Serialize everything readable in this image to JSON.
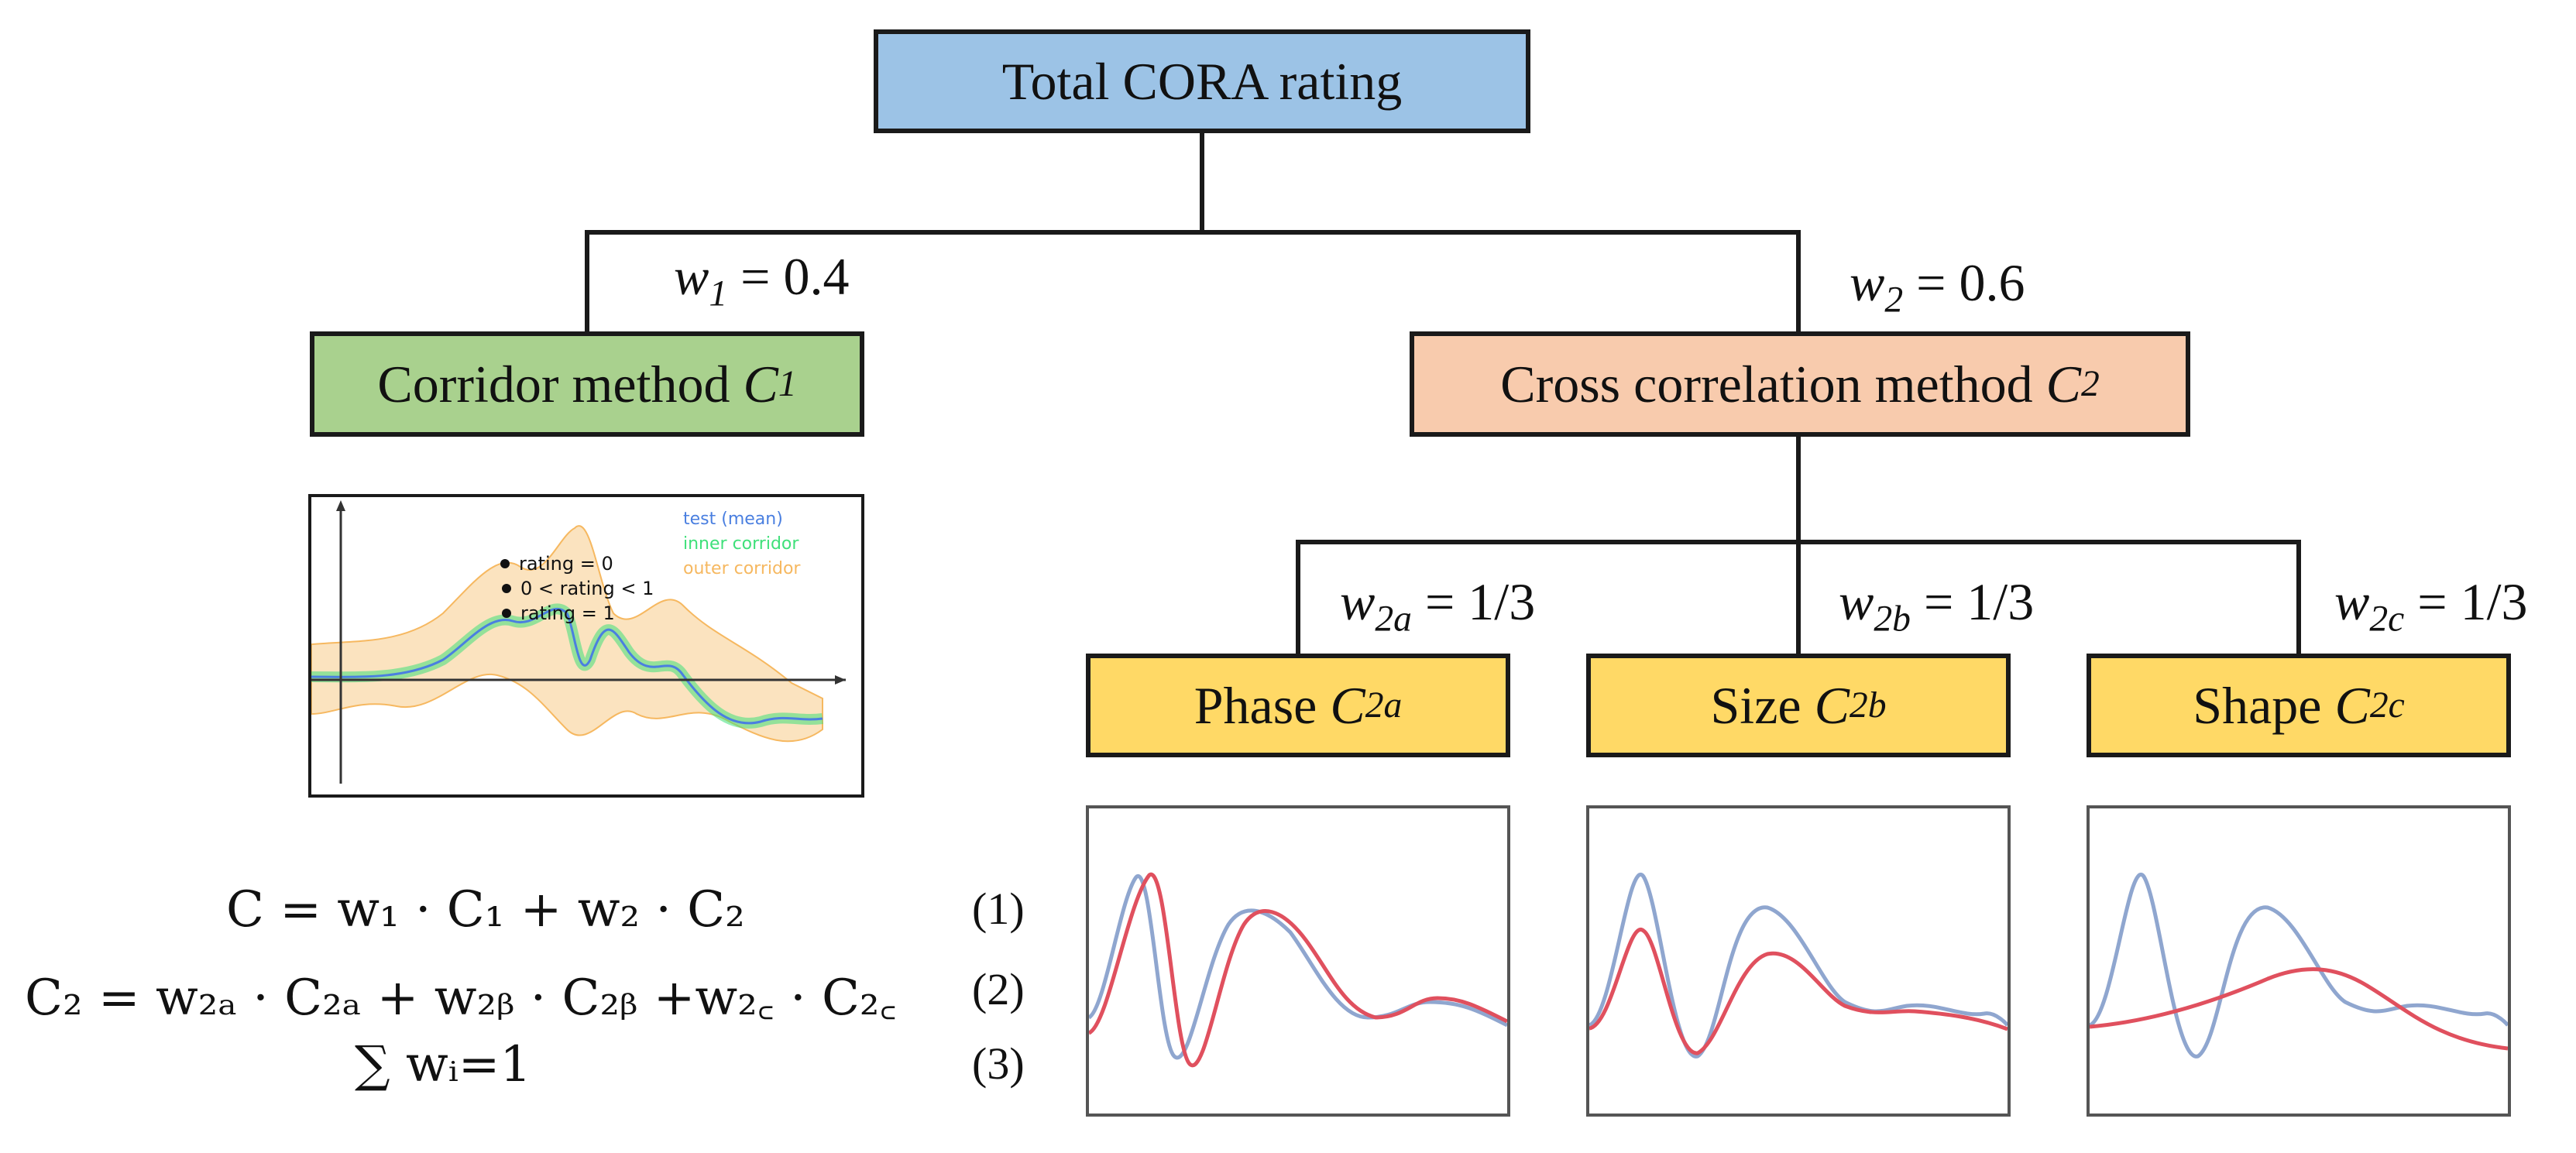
{
  "root": {
    "label": "Total CORA rating"
  },
  "corridor": {
    "label": "Corridor method ",
    "sym": "C",
    "sub": "1",
    "weight": {
      "sym": "w",
      "sub": "1",
      "value": " = 0.4"
    }
  },
  "crosscorr": {
    "label": "Cross correlation method ",
    "sym": "C",
    "sub": "2",
    "weight": {
      "sym": "w",
      "sub": "2",
      "value": " = 0.6"
    }
  },
  "phase": {
    "label": "Phase ",
    "sym": "C",
    "sub": "2a",
    "weight": {
      "sym": "w",
      "sub": "2a",
      "value": " = 1/3"
    }
  },
  "size": {
    "label": "Size ",
    "sym": "C",
    "sub": "2b",
    "weight": {
      "sym": "w",
      "sub": "2b",
      "value": " = 1/3"
    }
  },
  "shape": {
    "label": "Shape ",
    "sym": "C",
    "sub": "2c",
    "weight": {
      "sym": "w",
      "sub": "2c",
      "value": " = 1/3"
    }
  },
  "corridor_plot": {
    "legend": [
      "test (mean)",
      "inner corridor",
      "outer corridor"
    ],
    "ratings": [
      "rating = 0",
      "0 < rating < 1",
      "rating = 1"
    ],
    "colors": {
      "test": "#4a7fe0",
      "inner": "#3fe07a",
      "outer": "#f6b860",
      "outer_fill": "#fbe3bf"
    }
  },
  "equations": [
    {
      "text": "C = w₁ · C₁ + w₂ · C₂",
      "number": "(1)"
    },
    {
      "text": "C₂ = w₂ₐ · C₂ₐ + w₂ᵦ · C₂ᵦ +w₂꜀ · C₂꜀",
      "number": "(2)"
    },
    {
      "text": "∑ wᵢ=1",
      "number": "(3)"
    }
  ],
  "signal_colors": {
    "reference": "#8fa6cf",
    "model": "#e0505e"
  }
}
